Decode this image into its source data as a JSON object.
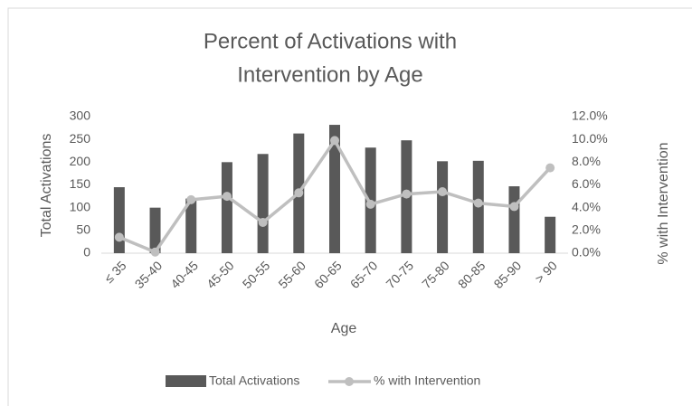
{
  "chart_data": {
    "type": "bar_line",
    "title": [
      "Percent of Activations with",
      "Intervention by Age"
    ],
    "x_label": "Age",
    "y_label": "Total Activations",
    "y2_label": "% with Intervention",
    "categories": [
      "≤ 35",
      "35-40",
      "40-45",
      "45-50",
      "50-55",
      "55-60",
      "60-65",
      "65-70",
      "70-75",
      "75-80",
      "80-85",
      "85-90",
      "> 90"
    ],
    "series": [
      {
        "name": "Total Activations",
        "type": "bar",
        "color": "#595959",
        "values": [
          145,
          100,
          120,
          200,
          218,
          263,
          282,
          232,
          248,
          202,
          203,
          147,
          80
        ]
      },
      {
        "name": "% with Intervention",
        "type": "line",
        "axis": "y2",
        "color": "#bfbfbf",
        "values": [
          1.4,
          0.1,
          4.7,
          5.0,
          2.7,
          5.3,
          9.9,
          4.3,
          5.2,
          5.4,
          4.4,
          4.1,
          7.5
        ]
      }
    ],
    "ylim": [
      0,
      300
    ],
    "yticks": [
      0,
      50,
      100,
      150,
      200,
      250,
      300
    ],
    "y2lim": [
      0,
      12
    ],
    "y2ticks": [
      {
        "value": 0,
        "label": "0.0%"
      },
      {
        "value": 2,
        "label": "2.0%"
      },
      {
        "value": 4,
        "label": "4.0%"
      },
      {
        "value": 6,
        "label": "6.0%"
      },
      {
        "value": 8,
        "label": "8.0%"
      },
      {
        "value": 10,
        "label": "10.0%"
      },
      {
        "value": 12,
        "label": "12.0%"
      }
    ],
    "legend": "bottom"
  }
}
